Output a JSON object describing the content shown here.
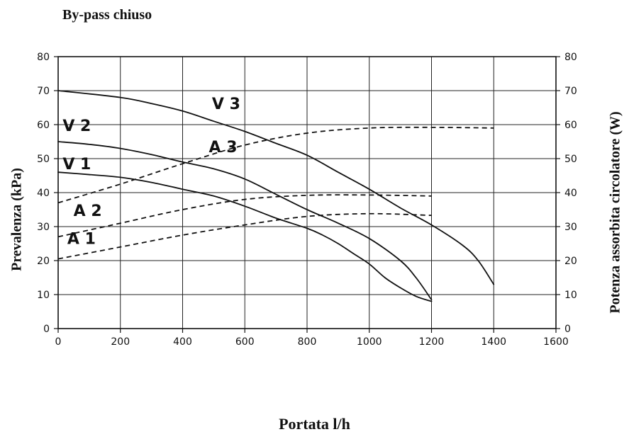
{
  "chart_data": {
    "type": "line",
    "title": "By-pass chiuso",
    "xlabel": "Portata l/h",
    "ylabel": "Prevalenza (kPa)",
    "ylabel_right": "Potenza assorbita circolatore (W)",
    "xlim": [
      0,
      1600
    ],
    "ylim": [
      0,
      80
    ],
    "ylim_right": [
      0,
      80
    ],
    "x_ticks": [
      0,
      200,
      400,
      600,
      800,
      1000,
      1200,
      1400,
      1600
    ],
    "y_ticks": [
      0,
      10,
      20,
      30,
      40,
      50,
      60,
      70,
      80
    ],
    "y_ticks_right": [
      0,
      10,
      20,
      30,
      40,
      50,
      60,
      70,
      80
    ],
    "grid": true,
    "series": [
      {
        "name": "V 3",
        "axis": "left",
        "style": "solid",
        "x": [
          0,
          200,
          300,
          400,
          500,
          600,
          700,
          800,
          900,
          1000,
          1100,
          1200,
          1300,
          1350,
          1400
        ],
        "y": [
          70,
          68,
          66.2,
          64,
          61,
          58,
          54.5,
          51,
          46,
          41,
          35.5,
          30.5,
          24.5,
          20,
          13
        ]
      },
      {
        "name": "V 2",
        "axis": "left",
        "style": "solid",
        "x": [
          0,
          100,
          200,
          300,
          400,
          500,
          600,
          700,
          800,
          900,
          1000,
          1100,
          1150,
          1200
        ],
        "y": [
          55,
          54.2,
          53,
          51.2,
          49,
          47,
          44,
          39.5,
          35,
          31,
          26.5,
          20,
          15,
          8.5
        ]
      },
      {
        "name": "V 1",
        "axis": "left",
        "style": "solid",
        "x": [
          0,
          100,
          200,
          300,
          400,
          500,
          600,
          700,
          800,
          850,
          900,
          950,
          1000,
          1050,
          1100,
          1150,
          1200
        ],
        "y": [
          46,
          45.3,
          44.5,
          43,
          41,
          39,
          36,
          32.5,
          29.5,
          27.5,
          25,
          22,
          19,
          15,
          12,
          9.5,
          8
        ]
      },
      {
        "name": "A 3",
        "axis": "right",
        "style": "dashed",
        "x": [
          0,
          200,
          400,
          600,
          800,
          1000,
          1200,
          1400
        ],
        "y": [
          37,
          42.5,
          48.5,
          54,
          57.5,
          59,
          59.2,
          59
        ]
      },
      {
        "name": "A 2",
        "axis": "right",
        "style": "dashed",
        "x": [
          0,
          200,
          400,
          600,
          800,
          1000,
          1200
        ],
        "y": [
          27,
          31,
          35,
          38,
          39.2,
          39.3,
          39
        ]
      },
      {
        "name": "A 1",
        "axis": "right",
        "style": "dashed",
        "x": [
          0,
          200,
          400,
          600,
          800,
          1000,
          1200
        ],
        "y": [
          20.5,
          24,
          27.5,
          30.5,
          33,
          33.8,
          33.3
        ]
      }
    ],
    "annotations": [
      {
        "text": "V 3",
        "x": 540,
        "y": 66.3
      },
      {
        "text": "V 2",
        "x": 60,
        "y": 59.8
      },
      {
        "text": "V 1",
        "x": 60,
        "y": 48.5
      },
      {
        "text": "A 3",
        "x": 530,
        "y": 53.5
      },
      {
        "text": "A 2",
        "x": 95,
        "y": 34.8
      },
      {
        "text": "A 1",
        "x": 75,
        "y": 26.6
      }
    ]
  }
}
